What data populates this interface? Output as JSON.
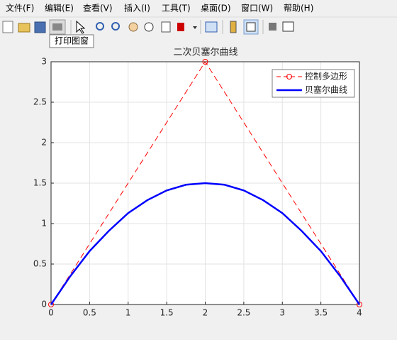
{
  "menu": [
    "文件(F)",
    "编辑(E)",
    "查看(V)",
    "插入(I)",
    "工具(T)",
    "桌面(D)",
    "窗口(W)",
    "帮助(H)"
  ],
  "tooltip": "打印图窗",
  "chart_data": {
    "type": "line",
    "title": "二次贝塞尔曲线",
    "series": [
      {
        "name": "控制多边形",
        "color": "#ff0000",
        "line_style": "dashed",
        "marker": "o",
        "line_width": 1,
        "x": [
          0,
          2,
          4
        ],
        "values": [
          0,
          3,
          0
        ]
      },
      {
        "name": "贝塞尔曲线",
        "color": "#0000ff",
        "line_style": "solid",
        "line_width": 2.5,
        "x": [
          0,
          0.25,
          0.5,
          0.75,
          1,
          1.25,
          1.5,
          1.75,
          2,
          2.25,
          2.5,
          2.75,
          3,
          3.25,
          3.5,
          3.75,
          4
        ],
        "values": [
          0,
          0.35,
          0.66,
          0.91,
          1.13,
          1.29,
          1.41,
          1.48,
          1.5,
          1.48,
          1.41,
          1.29,
          1.13,
          0.91,
          0.66,
          0.35,
          0
        ]
      }
    ],
    "xlim": [
      0,
      4
    ],
    "xticks": [
      0,
      0.5,
      1,
      1.5,
      2,
      2.5,
      3,
      3.5,
      4
    ],
    "ylim": [
      0,
      3
    ],
    "yticks": [
      0,
      0.5,
      1,
      1.5,
      2,
      2.5,
      3
    ],
    "grid": true,
    "legend": "upper right"
  }
}
